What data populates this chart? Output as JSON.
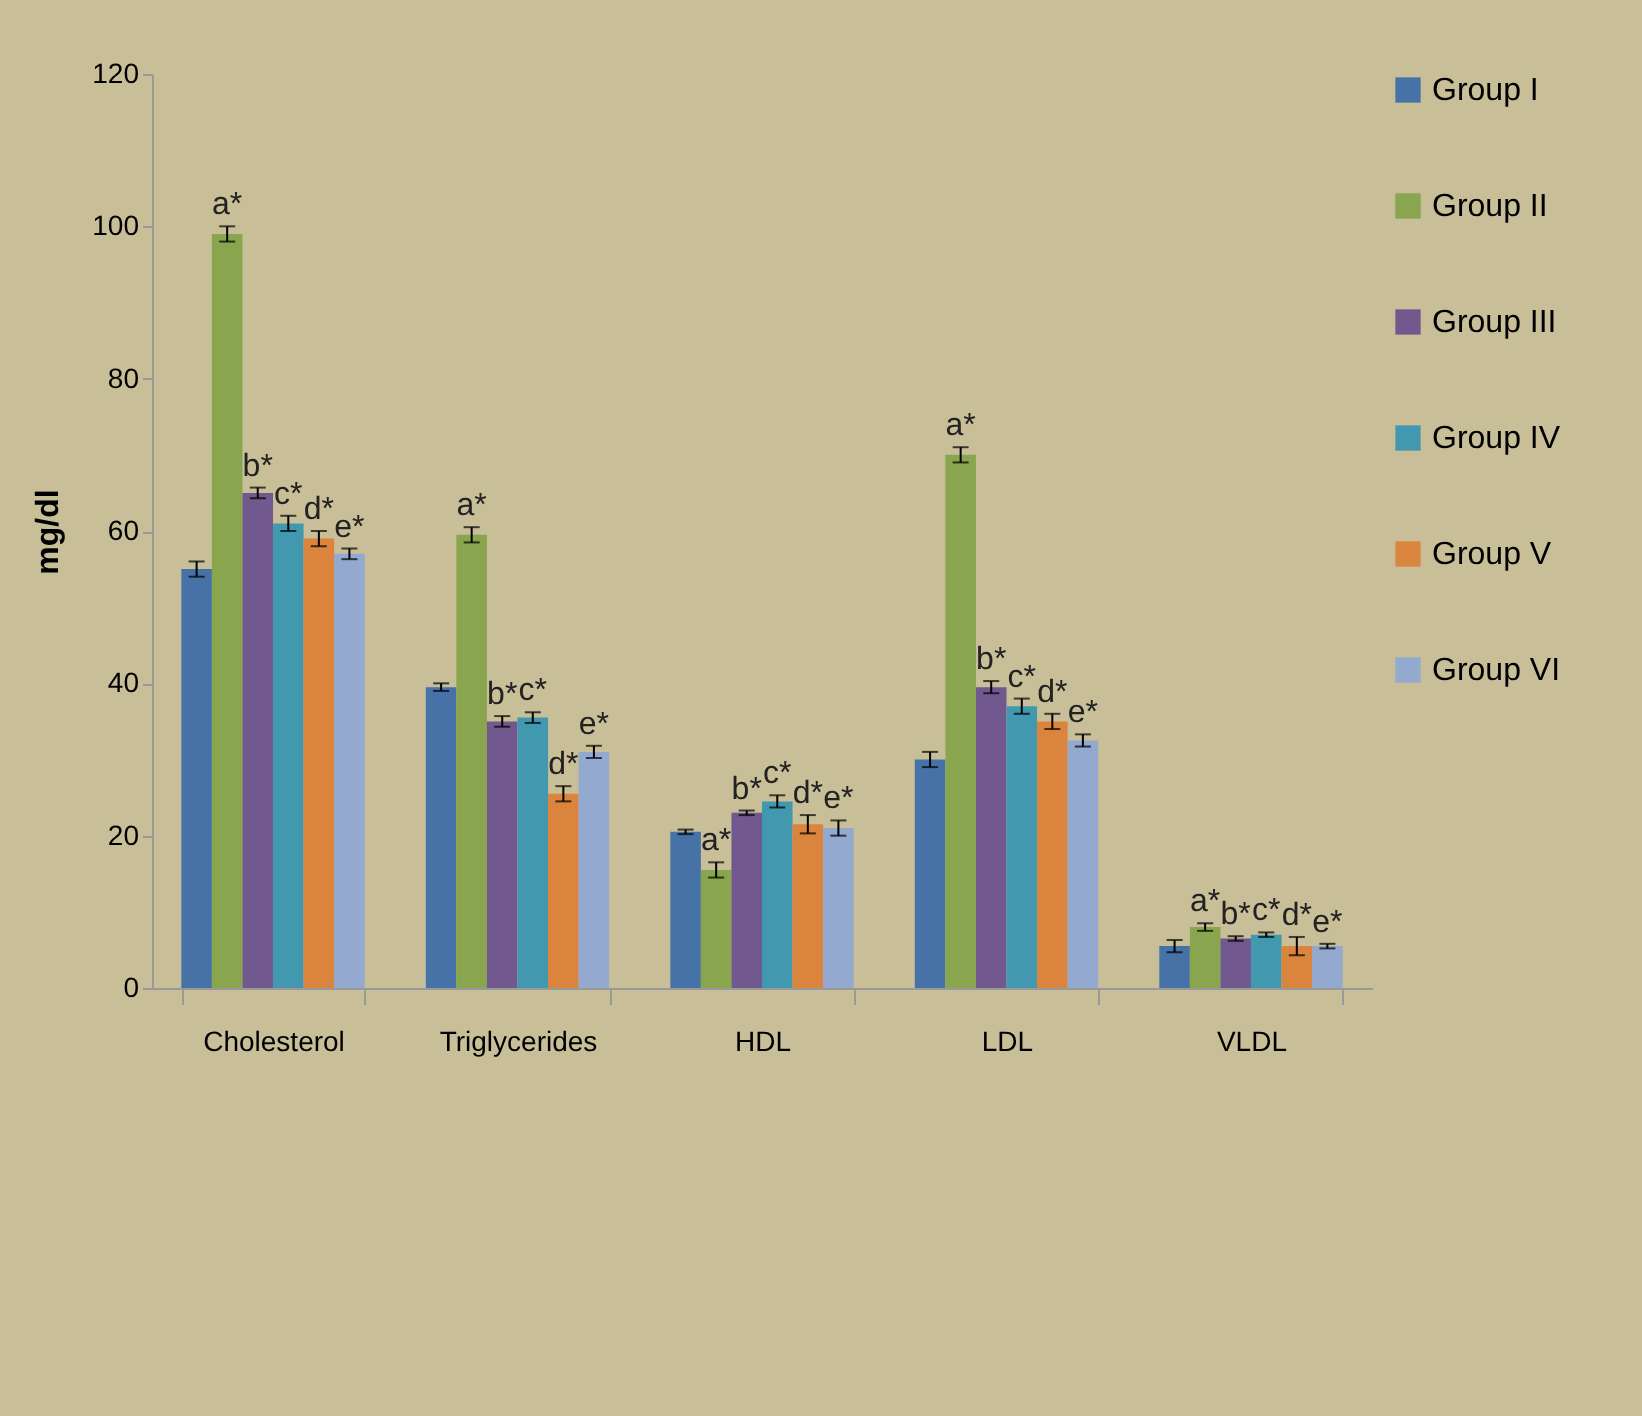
{
  "chart_data": {
    "type": "bar",
    "ylabel": "mg/dl",
    "categories": [
      "Cholesterol",
      "Triglycerides",
      "HDL",
      "LDL",
      "VLDL"
    ],
    "series": [
      {
        "name": "Group I",
        "color": "#4672a8",
        "values": [
          55,
          39.5,
          20.5,
          30,
          5.5
        ],
        "errors": [
          1,
          0.5,
          0.3,
          1,
          0.8
        ],
        "value_labels": [
          null,
          null,
          null,
          null,
          null
        ]
      },
      {
        "name": "Group II",
        "color": "#89a54e",
        "values": [
          99,
          59.5,
          15.5,
          70,
          8
        ],
        "errors": [
          1,
          1,
          1,
          1,
          0.5
        ],
        "value_labels": [
          "a*",
          "a*",
          "a*",
          "a*",
          "a*"
        ]
      },
      {
        "name": "Group III",
        "color": "#71588f",
        "values": [
          65,
          35,
          23,
          39.5,
          6.5
        ],
        "errors": [
          0.7,
          0.7,
          0.3,
          0.8,
          0.3
        ],
        "value_labels": [
          "b*",
          "b*",
          "b*",
          "b*",
          "b*"
        ]
      },
      {
        "name": "Group IV",
        "color": "#4198af",
        "values": [
          61,
          35.5,
          24.5,
          37,
          7
        ],
        "errors": [
          1,
          0.7,
          0.8,
          1,
          0.3
        ],
        "value_labels": [
          "c*",
          "c*",
          "c*",
          "c*",
          "c*"
        ]
      },
      {
        "name": "Group V",
        "color": "#db843d",
        "values": [
          59,
          25.5,
          21.5,
          35,
          5.5
        ],
        "errors": [
          1,
          1,
          1.2,
          1,
          1.2
        ],
        "value_labels": [
          "d*",
          "d*",
          "d*",
          "d*",
          "d*"
        ]
      },
      {
        "name": "Group VI",
        "color": "#93a9cf",
        "values": [
          57,
          31,
          21,
          32.5,
          5.5
        ],
        "errors": [
          0.7,
          0.8,
          1,
          0.8,
          0.3
        ],
        "value_labels": [
          "e*",
          "e*",
          "e*",
          "e*",
          "e*"
        ]
      }
    ],
    "ylim": [
      0,
      120
    ],
    "yticks": [
      0,
      20,
      40,
      60,
      80,
      100,
      120
    ],
    "grid": false,
    "legend": "right"
  }
}
